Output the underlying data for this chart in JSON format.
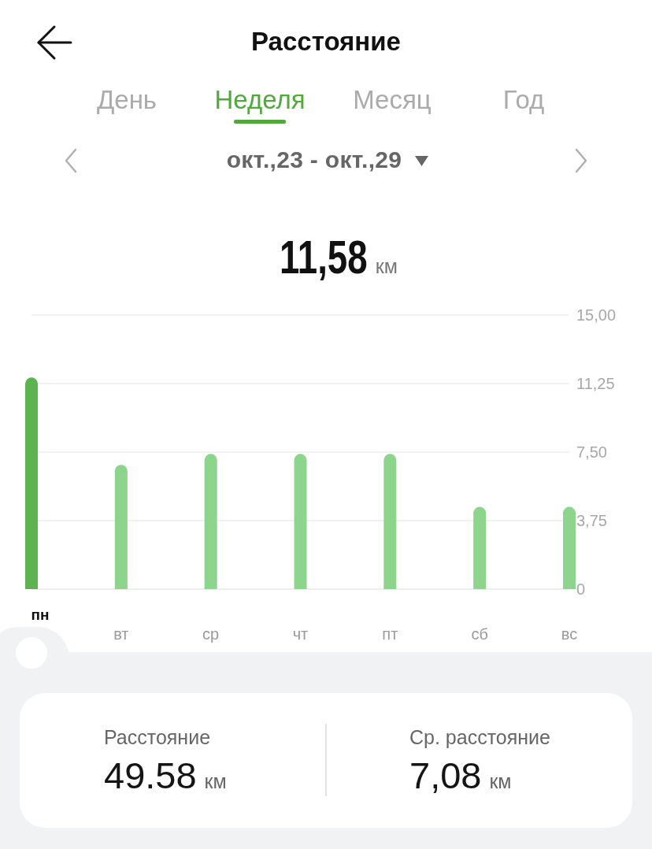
{
  "chart_data": {
    "type": "bar",
    "title": "Расстояние",
    "subtitle": "окт.,23 - окт.,29",
    "categories": [
      "пн",
      "вт",
      "ср",
      "чт",
      "пт",
      "сб",
      "вс"
    ],
    "values": [
      11.58,
      6.8,
      7.4,
      7.4,
      7.4,
      4.5,
      4.5
    ],
    "colors": [
      "#5db350",
      "#8dd48c",
      "#8dd48c",
      "#8dd48c",
      "#8dd48c",
      "#8dd48c",
      "#8dd48c"
    ],
    "ylim": [
      0,
      15
    ],
    "yticks": [
      0,
      {
        "value": 3.75,
        "label": "3,75"
      },
      {
        "value": 7.5,
        "label": "7,50"
      },
      {
        "value": 11.25,
        "label": "11,25"
      },
      {
        "value": 15,
        "label": "15,00"
      }
    ],
    "grid": "y",
    "annotations": [
      "День",
      "Неделя",
      "Месяц",
      "Год",
      "11,58 км",
      "Расстояние",
      "49.58 км",
      "Ср. расстояние",
      "7,08 км"
    ]
  }
}
